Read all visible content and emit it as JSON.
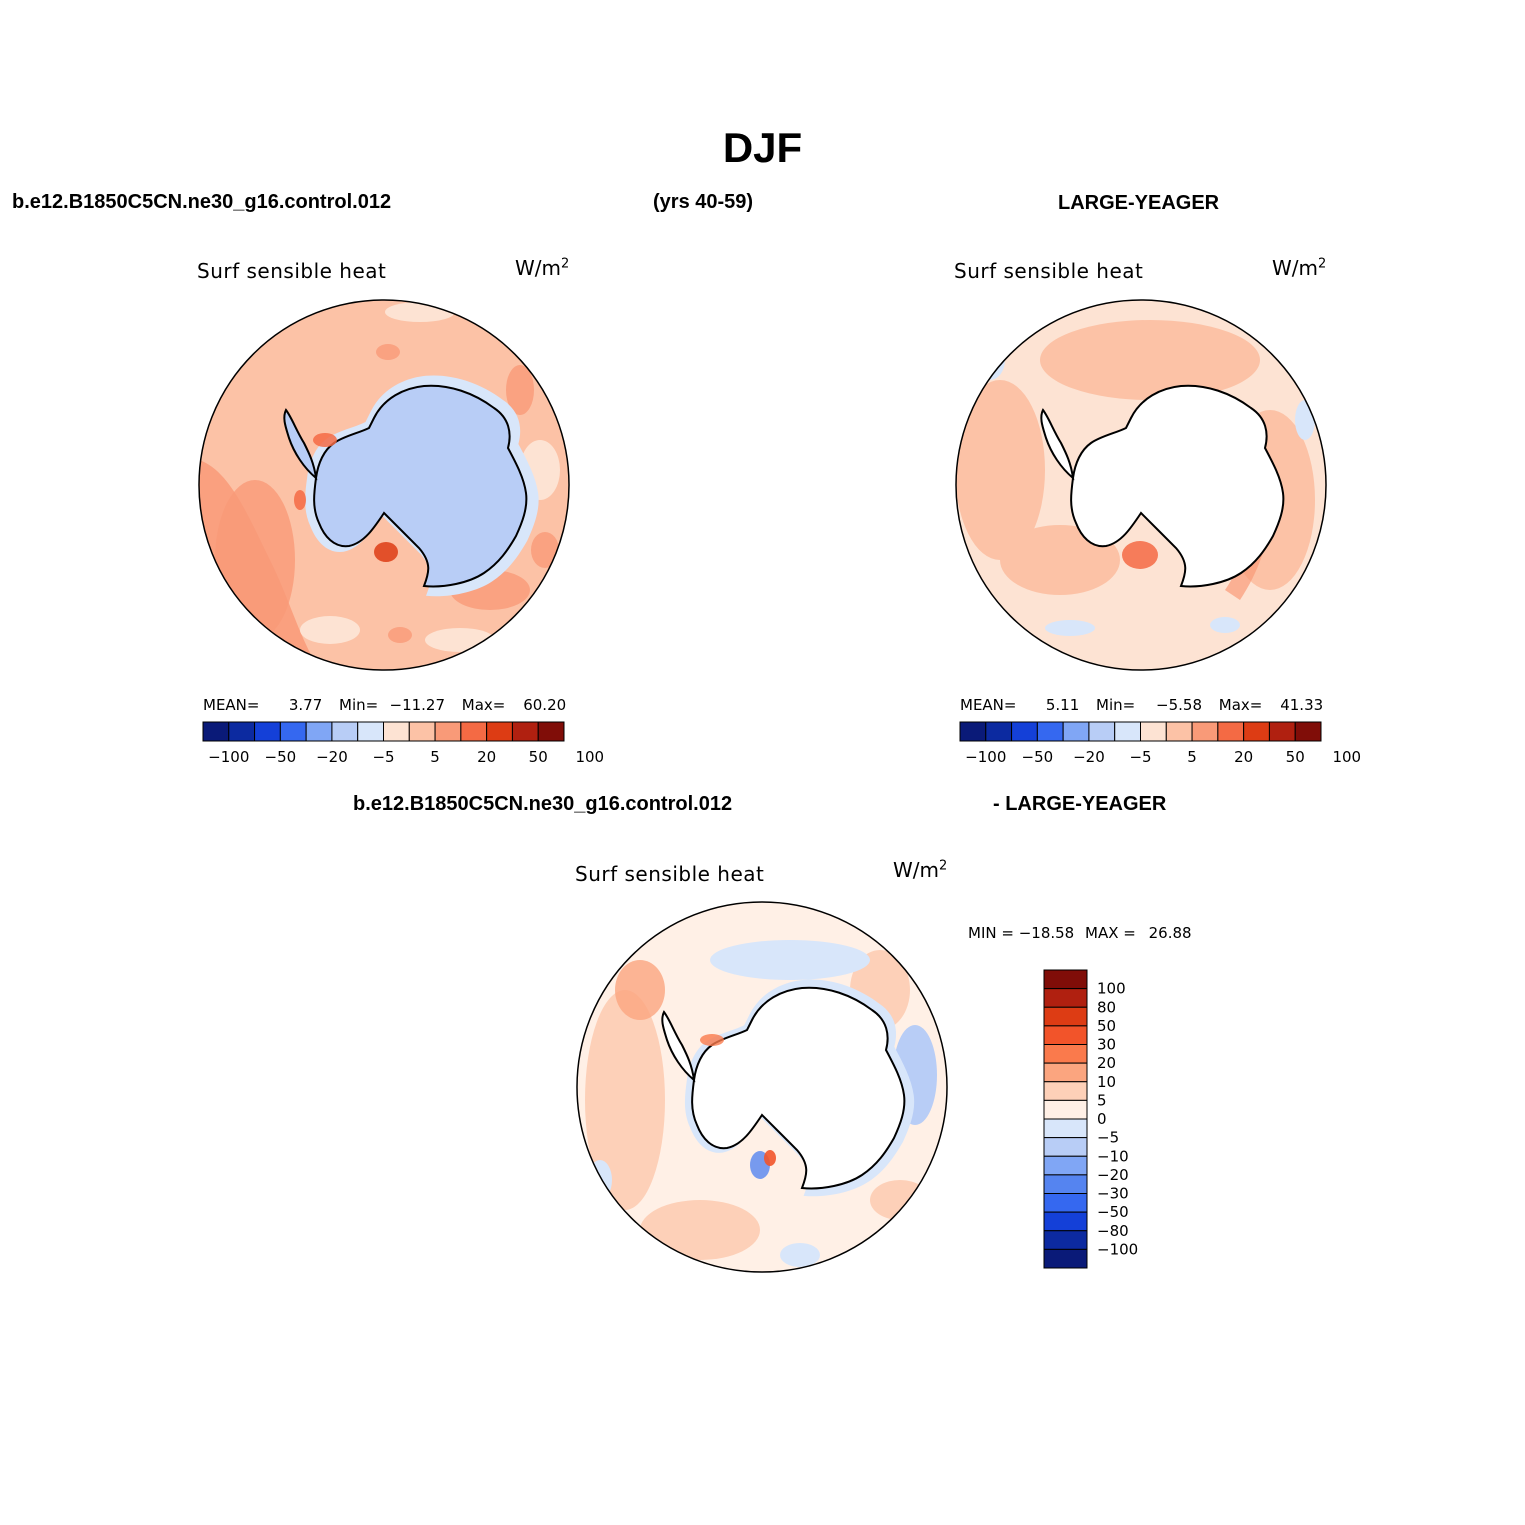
{
  "title": "DJF",
  "header": {
    "left_case": "b.e12.B1850C5CN.ne30_g16.control.012",
    "years": "(yrs 40-59)",
    "right_case": "LARGE-YEAGER",
    "diff_left": "b.e12.B1850C5CN.ne30_g16.control.012",
    "diff_right": "- LARGE-YEAGER"
  },
  "panels": [
    {
      "id": "control",
      "variable": "Surf sensible heat",
      "units": "W/m",
      "units_sup": "2",
      "stats": {
        "mean_label": "MEAN=",
        "mean": "3.77",
        "min_label": "Min=",
        "min": "−11.27",
        "max_label": "Max=",
        "max": "60.20"
      }
    },
    {
      "id": "obs",
      "variable": "Surf sensible heat",
      "units": "W/m",
      "units_sup": "2",
      "stats": {
        "mean_label": "MEAN=",
        "mean": "5.11",
        "min_label": "Min=",
        "min": "−5.58",
        "max_label": "Max=",
        "max": "41.33"
      }
    },
    {
      "id": "difference",
      "variable": "Surf sensible heat",
      "units": "W/m",
      "units_sup": "2",
      "stats": {
        "min_label": "MIN =",
        "min": "−18.58",
        "max_label": "MAX =",
        "max": "26.88"
      }
    }
  ],
  "colorbar_main": {
    "colors": [
      "#0a1a78",
      "#0c2aa0",
      "#1440d8",
      "#3568f0",
      "#80a6f5",
      "#b8cdf6",
      "#d8e6fa",
      "#fde3d3",
      "#fcc2a6",
      "#f99a78",
      "#f46a44",
      "#dd3c14",
      "#b02010",
      "#800d08"
    ],
    "tick_labels": [
      "−100",
      "−50",
      "−20",
      "−5",
      "5",
      "20",
      "50",
      "100"
    ]
  },
  "colorbar_diff": {
    "colors": [
      "#800d08",
      "#b02010",
      "#dd3c14",
      "#f2542a",
      "#fa7a4c",
      "#fba57f",
      "#fdd0b8",
      "#fff0e6",
      "#d8e6fa",
      "#b8cdf6",
      "#80a6f5",
      "#5584f0",
      "#3568f0",
      "#1440d8",
      "#0c2aa0",
      "#0a1a78"
    ],
    "tick_labels": [
      "100",
      "80",
      "50",
      "30",
      "20",
      "10",
      "5",
      "0",
      "−5",
      "−10",
      "−20",
      "−30",
      "−50",
      "−80",
      "−100"
    ]
  }
}
